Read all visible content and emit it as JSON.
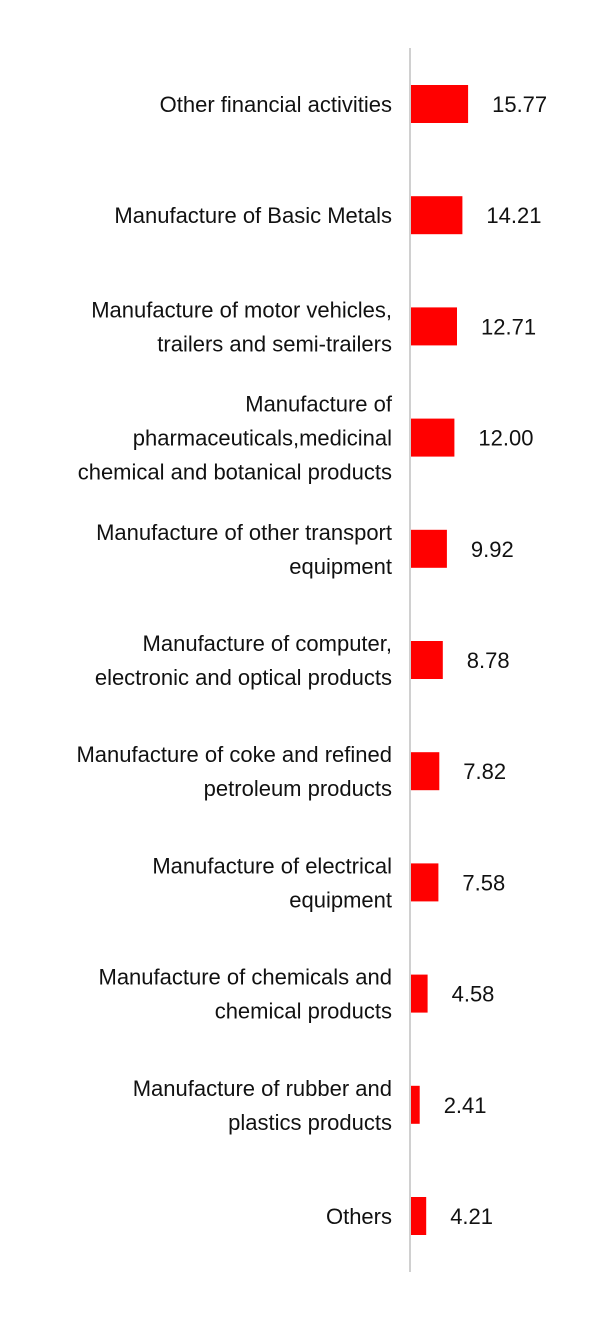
{
  "chart_data": {
    "type": "bar",
    "orientation": "horizontal",
    "categories": [
      "Other financial activities",
      "Manufacture of Basic Metals",
      "Manufacture of motor vehicles, trailers and semi-trailers",
      "Manufacture of pharmaceuticals,medicinal chemical and botanical products",
      "Manufacture of other transport equipment",
      "Manufacture of computer, electronic and optical products",
      "Manufacture of coke and refined petroleum products",
      "Manufacture of electrical equipment",
      "Manufacture of chemicals and chemical products",
      "Manufacture of rubber and plastics products",
      "Others"
    ],
    "category_lines": [
      [
        "Other financial activities"
      ],
      [
        "Manufacture of Basic Metals"
      ],
      [
        "Manufacture of motor vehicles,",
        "trailers and semi-trailers"
      ],
      [
        "Manufacture of",
        "pharmaceuticals,medicinal",
        "chemical and botanical products"
      ],
      [
        "Manufacture of other transport",
        "equipment"
      ],
      [
        "Manufacture of computer,",
        "electronic and optical products"
      ],
      [
        "Manufacture of coke and refined",
        "petroleum products"
      ],
      [
        "Manufacture of electrical",
        "equipment"
      ],
      [
        "Manufacture of chemicals and",
        "chemical products"
      ],
      [
        "Manufacture of rubber and",
        "plastics products"
      ],
      [
        "Others"
      ]
    ],
    "values": [
      15.77,
      14.21,
      12.71,
      12.0,
      9.92,
      8.78,
      7.82,
      7.58,
      4.58,
      2.41,
      4.21
    ],
    "value_labels": [
      "15.77",
      "14.21",
      "12.71",
      "12.00",
      "9.92",
      "8.78",
      "7.82",
      "7.58",
      "4.58",
      "2.41",
      "4.21"
    ],
    "title": "",
    "xlabel": "",
    "ylabel": "",
    "xlim": [
      0,
      100
    ],
    "grid": false,
    "legend": "none",
    "colors": {
      "bar": "#ff0000",
      "axis": "#d0d0d0",
      "text": "#111111"
    }
  }
}
